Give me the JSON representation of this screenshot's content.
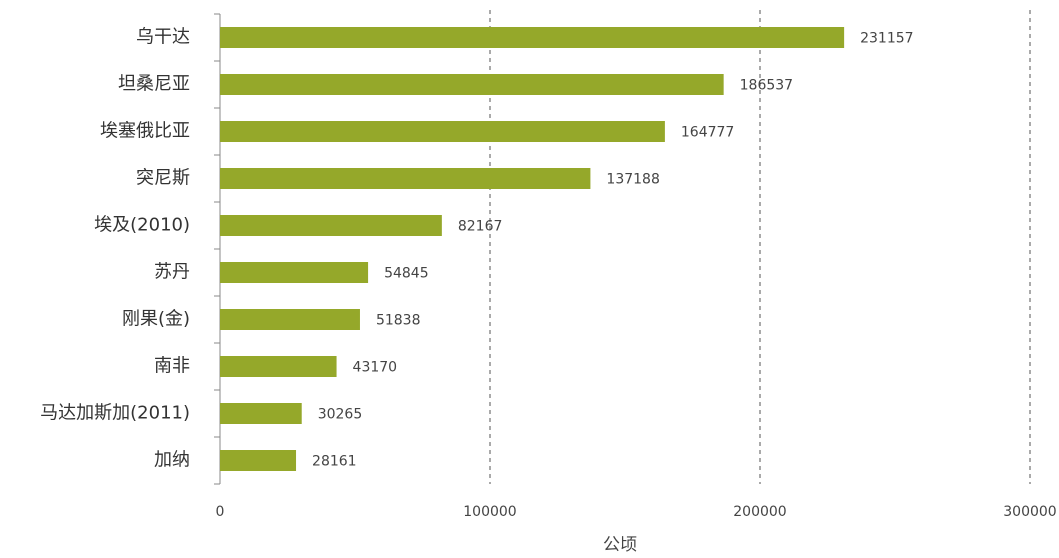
{
  "chart_data": {
    "type": "bar",
    "orientation": "horizontal",
    "categories": [
      "乌干达",
      "坦桑尼亚",
      "埃塞俄比亚",
      "突尼斯",
      "埃及(2010)",
      "苏丹",
      "刚果(金)",
      "南非",
      "马达加斯加(2011)",
      "加纳"
    ],
    "values": [
      231157,
      186537,
      164777,
      137188,
      82167,
      54845,
      51838,
      43170,
      30265,
      28161
    ],
    "color": "#95a82a",
    "xlim": [
      0,
      300000
    ],
    "xticks": [
      0,
      100000,
      200000,
      300000
    ],
    "xlabel": "公顷",
    "grid": true
  }
}
